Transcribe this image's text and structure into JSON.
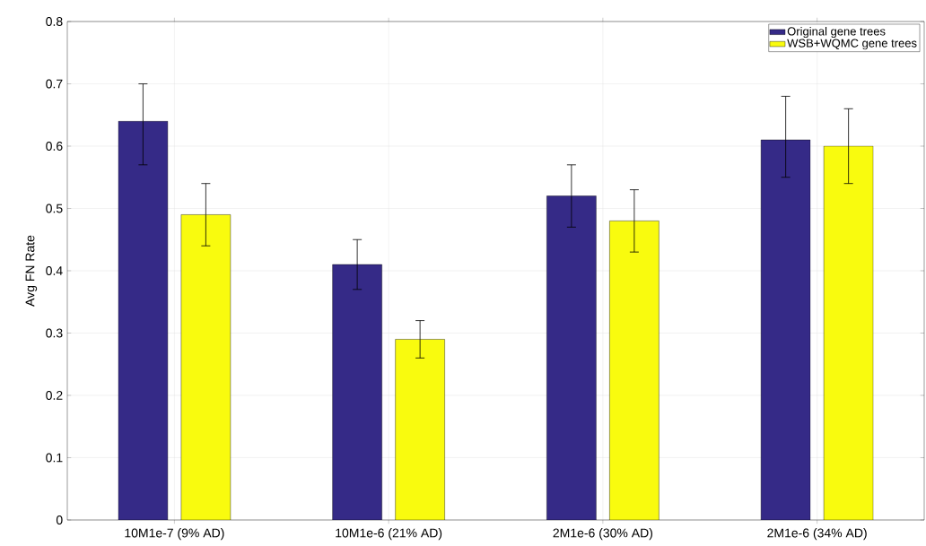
{
  "chart_data": {
    "type": "bar",
    "ylabel": "Avg FN Rate",
    "categories": [
      "10M1e-7 (9% AD)",
      "10M1e-6 (21% AD)",
      "2M1e-6 (30% AD)",
      "2M1e-6 (34% AD)"
    ],
    "series": [
      {
        "name": "Original gene trees",
        "color": "#352a87",
        "values": [
          0.64,
          0.41,
          0.52,
          0.61
        ],
        "errors": [
          [
            0.57,
            0.7
          ],
          [
            0.37,
            0.45
          ],
          [
            0.47,
            0.57
          ],
          [
            0.55,
            0.68
          ]
        ]
      },
      {
        "name": "WSB+WQMC gene trees",
        "color": "#f9fb0e",
        "values": [
          0.49,
          0.29,
          0.48,
          0.6
        ],
        "errors": [
          [
            0.44,
            0.54
          ],
          [
            0.26,
            0.32
          ],
          [
            0.43,
            0.53
          ],
          [
            0.54,
            0.66
          ]
        ]
      }
    ],
    "ylim": [
      0,
      0.8
    ],
    "yticks": [
      0,
      0.1,
      0.2,
      0.3,
      0.4,
      0.5,
      0.6,
      0.7,
      0.8
    ],
    "grid": true,
    "legend": "top right"
  }
}
